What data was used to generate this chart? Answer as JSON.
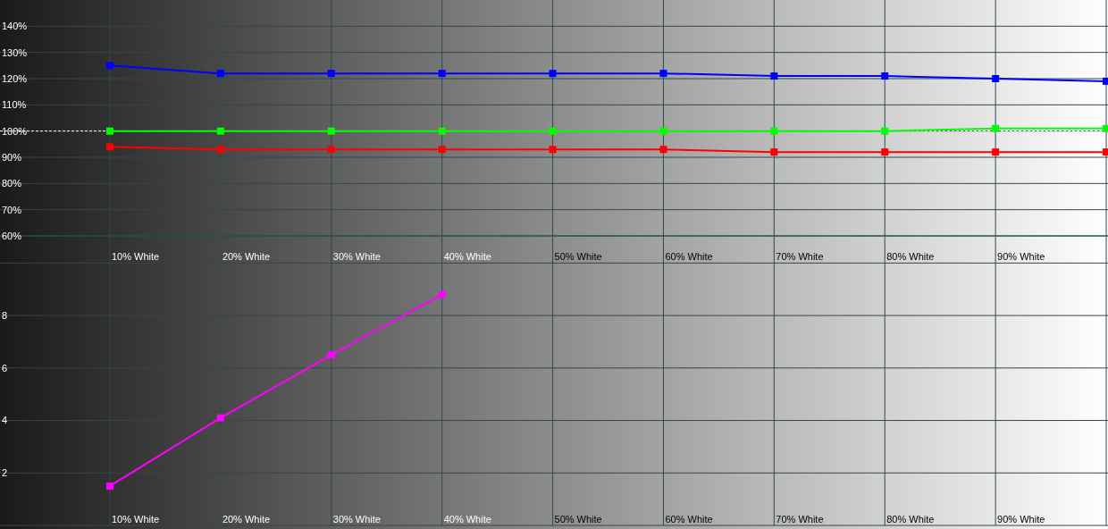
{
  "chart_data": [
    {
      "type": "line",
      "categories": [
        "10% White",
        "20% White",
        "30% White",
        "40% White",
        "50% White",
        "60% White",
        "70% White",
        "80% White",
        "90% White",
        null
      ],
      "series": [
        {
          "color": "#0000ff",
          "values": [
            125,
            122,
            122,
            122,
            122,
            122,
            121,
            121,
            120,
            119
          ]
        },
        {
          "color": "#00ff00",
          "values": [
            100,
            100,
            100,
            100,
            100,
            100,
            100,
            100,
            101,
            101
          ]
        },
        {
          "color": "#ff0000",
          "values": [
            94,
            93,
            93,
            93,
            93,
            93,
            92,
            92,
            92,
            92
          ]
        }
      ],
      "ylim": [
        60,
        150
      ],
      "yticks": [
        {
          "value": 60,
          "label": "60%"
        },
        {
          "value": 70,
          "label": "70%"
        },
        {
          "value": 80,
          "label": "80%"
        },
        {
          "value": 90,
          "label": "90%"
        },
        {
          "value": 100,
          "label": "100%"
        },
        {
          "value": 110,
          "label": "110%"
        },
        {
          "value": 120,
          "label": "120%"
        },
        {
          "value": 130,
          "label": "130%"
        },
        {
          "value": 140,
          "label": "140%"
        }
      ],
      "grid": true,
      "marker": "square",
      "ref_lines": [
        {
          "axis": "y",
          "value": 100,
          "color": "#ffffff",
          "line_style": "dashed"
        }
      ]
    },
    {
      "type": "line",
      "categories": [
        "10% White",
        "20% White",
        "30% White",
        "40% White",
        "50% White",
        "60% White",
        "70% White",
        "80% White",
        "90% White",
        null
      ],
      "series": [
        {
          "color": "#ff00ff",
          "values": [
            1.5,
            4.1,
            6.5,
            8.8,
            null,
            null,
            null,
            null,
            null,
            null
          ]
        }
      ],
      "ylim": [
        0,
        11
      ],
      "yticks": [
        2,
        4,
        6,
        8,
        {
          "value": 10,
          "label": null
        }
      ],
      "grid": true,
      "marker": "square"
    }
  ]
}
